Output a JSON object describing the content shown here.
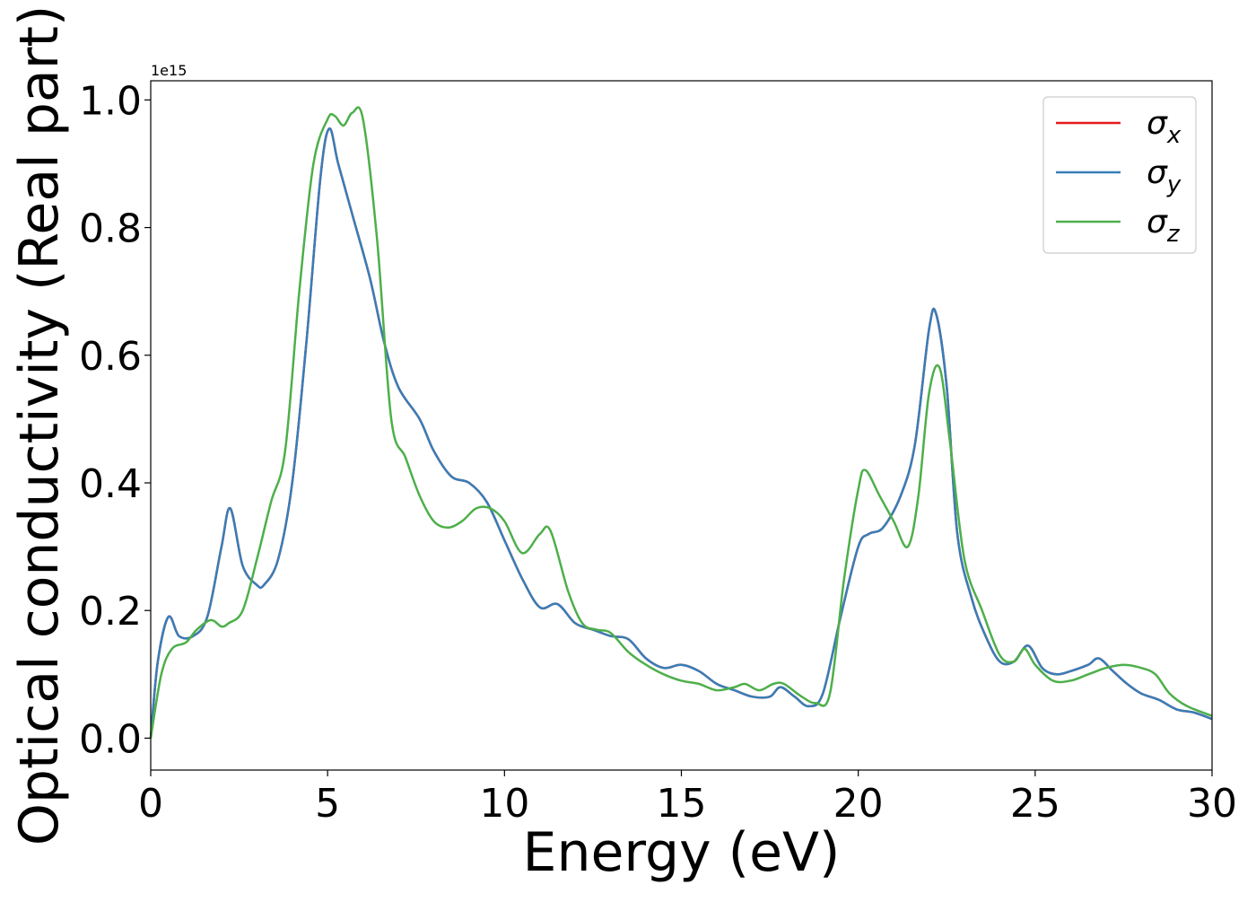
{
  "chart_data": {
    "type": "line",
    "xlabel": "Energy (eV)",
    "ylabel": "Optical conductivity (Real part)",
    "offset_text": "1e15",
    "xlim": [
      0,
      30
    ],
    "ylim": [
      -0.05,
      1.03
    ],
    "xticks": [
      0,
      5,
      10,
      15,
      20,
      25,
      30
    ],
    "xtick_labels": [
      "0",
      "5",
      "10",
      "15",
      "20",
      "25",
      "30"
    ],
    "yticks": [
      0.0,
      0.2,
      0.4,
      0.6,
      0.8,
      1.0
    ],
    "ytick_labels": [
      "0.0",
      "0.2",
      "0.4",
      "0.6",
      "0.8",
      "1.0"
    ],
    "y_scale_multiplier": 1000000000000000.0,
    "grid": false,
    "legend_position": "top-right",
    "series": [
      {
        "name": "σ",
        "subscript": "x",
        "color": "#e41a1c",
        "x": [
          0,
          0.2,
          0.5,
          0.8,
          1.2,
          1.6,
          2.0,
          2.25,
          2.6,
          3.0,
          3.2,
          3.6,
          4.0,
          4.4,
          4.8,
          5.05,
          5.3,
          5.7,
          6.2,
          6.6,
          7.0,
          7.6,
          8.0,
          8.5,
          9.0,
          9.5,
          10.0,
          10.5,
          11.0,
          11.5,
          12.0,
          12.5,
          13.0,
          13.5,
          14.0,
          14.5,
          15.0,
          15.5,
          16.0,
          16.5,
          17.0,
          17.5,
          17.8,
          18.2,
          18.6,
          19.0,
          19.5,
          20.0,
          20.3,
          20.7,
          21.2,
          21.6,
          22.0,
          22.2,
          22.5,
          22.8,
          23.2,
          23.6,
          24.0,
          24.4,
          24.8,
          25.2,
          25.6,
          26.0,
          26.5,
          26.8,
          27.2,
          27.6,
          28.0,
          28.5,
          29.0,
          29.5,
          30.0
        ],
        "values": [
          0.0,
          0.12,
          0.19,
          0.16,
          0.16,
          0.19,
          0.3,
          0.36,
          0.27,
          0.24,
          0.24,
          0.28,
          0.4,
          0.62,
          0.88,
          0.955,
          0.9,
          0.82,
          0.72,
          0.62,
          0.55,
          0.5,
          0.45,
          0.41,
          0.4,
          0.37,
          0.31,
          0.25,
          0.205,
          0.21,
          0.18,
          0.17,
          0.16,
          0.155,
          0.125,
          0.11,
          0.115,
          0.105,
          0.085,
          0.075,
          0.065,
          0.065,
          0.08,
          0.065,
          0.05,
          0.07,
          0.19,
          0.3,
          0.32,
          0.33,
          0.38,
          0.46,
          0.64,
          0.665,
          0.55,
          0.32,
          0.22,
          0.16,
          0.12,
          0.12,
          0.145,
          0.11,
          0.1,
          0.105,
          0.115,
          0.125,
          0.105,
          0.085,
          0.07,
          0.06,
          0.045,
          0.04,
          0.03
        ]
      },
      {
        "name": "σ",
        "subscript": "y",
        "color": "#377eb8",
        "x": [
          0,
          0.2,
          0.5,
          0.8,
          1.2,
          1.6,
          2.0,
          2.25,
          2.6,
          3.0,
          3.2,
          3.6,
          4.0,
          4.4,
          4.8,
          5.05,
          5.3,
          5.7,
          6.2,
          6.6,
          7.0,
          7.6,
          8.0,
          8.5,
          9.0,
          9.5,
          10.0,
          10.5,
          11.0,
          11.5,
          12.0,
          12.5,
          13.0,
          13.5,
          14.0,
          14.5,
          15.0,
          15.5,
          16.0,
          16.5,
          17.0,
          17.5,
          17.8,
          18.2,
          18.6,
          19.0,
          19.5,
          20.0,
          20.3,
          20.7,
          21.2,
          21.6,
          22.0,
          22.2,
          22.5,
          22.8,
          23.2,
          23.6,
          24.0,
          24.4,
          24.8,
          25.2,
          25.6,
          26.0,
          26.5,
          26.8,
          27.2,
          27.6,
          28.0,
          28.5,
          29.0,
          29.5,
          30.0
        ],
        "values": [
          0.0,
          0.12,
          0.19,
          0.16,
          0.16,
          0.19,
          0.3,
          0.36,
          0.27,
          0.24,
          0.24,
          0.28,
          0.4,
          0.62,
          0.88,
          0.955,
          0.9,
          0.82,
          0.72,
          0.62,
          0.55,
          0.5,
          0.45,
          0.41,
          0.4,
          0.37,
          0.31,
          0.25,
          0.205,
          0.21,
          0.18,
          0.17,
          0.16,
          0.155,
          0.125,
          0.11,
          0.115,
          0.105,
          0.085,
          0.075,
          0.065,
          0.065,
          0.08,
          0.065,
          0.05,
          0.07,
          0.19,
          0.3,
          0.32,
          0.33,
          0.38,
          0.46,
          0.64,
          0.665,
          0.55,
          0.32,
          0.22,
          0.16,
          0.12,
          0.12,
          0.145,
          0.11,
          0.1,
          0.105,
          0.115,
          0.125,
          0.105,
          0.085,
          0.07,
          0.06,
          0.045,
          0.04,
          0.03
        ]
      },
      {
        "name": "σ",
        "subscript": "z",
        "color": "#4daf4a",
        "x": [
          0,
          0.3,
          0.6,
          1.0,
          1.3,
          1.7,
          2.0,
          2.2,
          2.6,
          3.0,
          3.4,
          3.8,
          4.2,
          4.6,
          5.0,
          5.2,
          5.45,
          5.7,
          6.0,
          6.4,
          6.8,
          7.2,
          7.6,
          8.0,
          8.4,
          8.8,
          9.2,
          9.6,
          10.0,
          10.5,
          11.0,
          11.3,
          11.8,
          12.2,
          12.6,
          13.0,
          13.5,
          14.0,
          14.5,
          15.0,
          15.5,
          16.0,
          16.5,
          16.8,
          17.2,
          17.6,
          17.9,
          18.4,
          18.8,
          19.2,
          19.6,
          20.0,
          20.2,
          20.6,
          21.0,
          21.4,
          21.7,
          22.0,
          22.3,
          22.6,
          23.0,
          23.5,
          24.0,
          24.4,
          24.7,
          25.0,
          25.5,
          26.0,
          26.5,
          27.0,
          27.5,
          28.0,
          28.4,
          28.8,
          29.3,
          30.0
        ],
        "values": [
          0.0,
          0.1,
          0.14,
          0.15,
          0.17,
          0.185,
          0.175,
          0.18,
          0.2,
          0.28,
          0.37,
          0.45,
          0.7,
          0.9,
          0.97,
          0.975,
          0.96,
          0.98,
          0.97,
          0.78,
          0.5,
          0.44,
          0.38,
          0.34,
          0.33,
          0.34,
          0.36,
          0.36,
          0.34,
          0.29,
          0.32,
          0.325,
          0.23,
          0.18,
          0.17,
          0.165,
          0.135,
          0.115,
          0.1,
          0.09,
          0.085,
          0.075,
          0.08,
          0.085,
          0.075,
          0.085,
          0.085,
          0.065,
          0.055,
          0.07,
          0.25,
          0.39,
          0.42,
          0.38,
          0.34,
          0.3,
          0.38,
          0.54,
          0.58,
          0.46,
          0.28,
          0.2,
          0.13,
          0.12,
          0.14,
          0.115,
          0.09,
          0.09,
          0.1,
          0.11,
          0.115,
          0.11,
          0.1,
          0.07,
          0.05,
          0.035
        ]
      }
    ]
  }
}
